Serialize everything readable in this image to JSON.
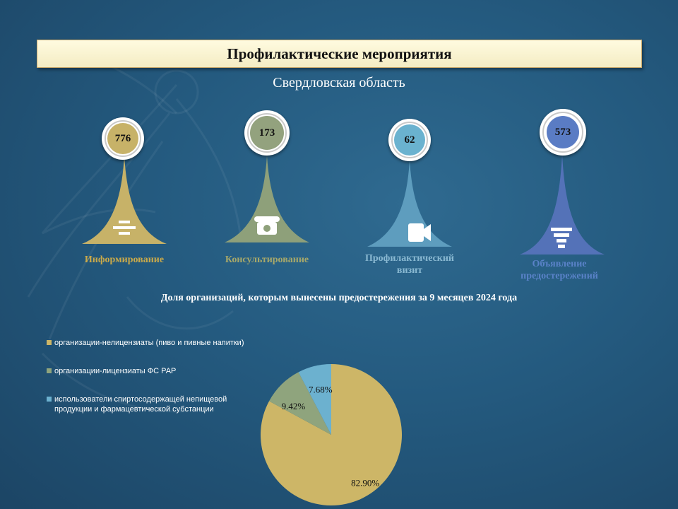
{
  "header": {
    "title": "Профилактические мероприятия",
    "region": "Свердловская область"
  },
  "metrics": [
    {
      "value": "776",
      "label": "Информирование",
      "color": "#c7b268",
      "core_color": "#c7b268",
      "icon": "list-lines-icon"
    },
    {
      "value": "173",
      "label": "Консультирование",
      "color": "#8ea07a",
      "core_color": "#93a27e",
      "icon": "telephone-icon"
    },
    {
      "value": "62",
      "label": "Профилактический визит",
      "color": "#5e9dbe",
      "core_color": "#6ab2cf",
      "icon": "video-camera-icon"
    },
    {
      "value": "573",
      "label": "Объявление предостережений",
      "color": "#5472b8",
      "core_color": "#5a7cc4",
      "icon": "filter-icon"
    }
  ],
  "chart_data": {
    "type": "pie",
    "title": "Доля организаций, которым вынесены предостережения за 9 месяцев 2024 года",
    "slices": [
      {
        "name": "организации-нелицензиаты (пиво и пивные напитки)",
        "value": 82.9,
        "label": "82.90%",
        "color": "#cdb667"
      },
      {
        "name": "организации-лицензиаты ФС РАР",
        "value": 9.42,
        "label": "9.42%",
        "color": "#8fa47d"
      },
      {
        "name": "использователи спиртосодержащей непищевой продукции и фармацевтической субстанции",
        "value": 7.68,
        "label": "7.68%",
        "color": "#6cb1cf"
      }
    ],
    "legend_position": "left"
  }
}
